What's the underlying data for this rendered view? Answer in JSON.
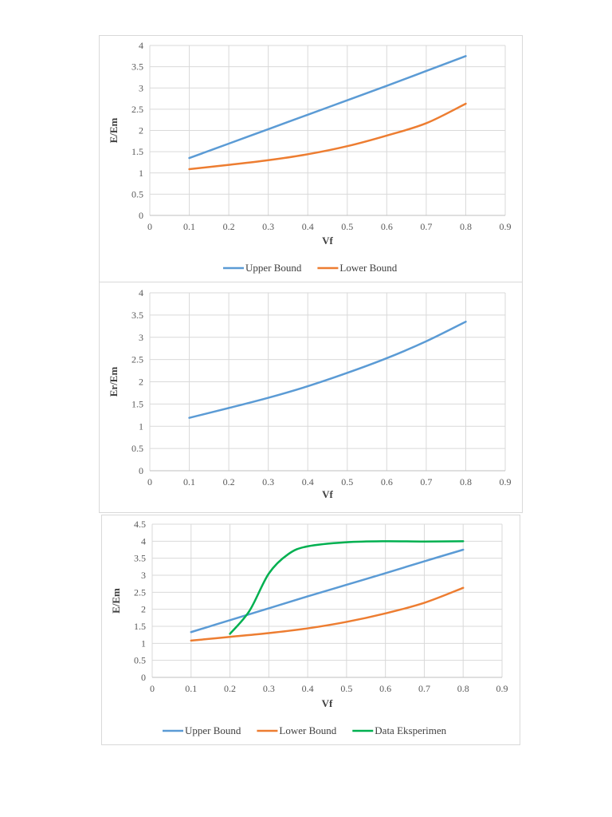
{
  "chart_data": [
    {
      "type": "line",
      "xlabel": "Vf",
      "ylabel": "E/Em",
      "xlim": [
        0,
        0.9
      ],
      "ylim": [
        0,
        4
      ],
      "xticks": [
        "0",
        "0.1",
        "0.2",
        "0.3",
        "0.4",
        "0.5",
        "0.6",
        "0.7",
        "0.8",
        "0.9"
      ],
      "yticks": [
        "0",
        "0.5",
        "1",
        "1.5",
        "2",
        "2.5",
        "3",
        "3.5",
        "4"
      ],
      "grid": true,
      "legend": "bottom",
      "series": [
        {
          "name": "Upper Bound",
          "color": "#5b9bd5",
          "x": [
            0.1,
            0.2,
            0.3,
            0.4,
            0.5,
            0.6,
            0.7,
            0.8
          ],
          "values": [
            1.35,
            1.69,
            2.03,
            2.37,
            2.71,
            3.05,
            3.4,
            3.75
          ]
        },
        {
          "name": "Lower Bound",
          "color": "#ed7d31",
          "x": [
            0.1,
            0.2,
            0.3,
            0.4,
            0.5,
            0.6,
            0.7,
            0.8
          ],
          "values": [
            1.09,
            1.19,
            1.3,
            1.44,
            1.63,
            1.88,
            2.17,
            2.63
          ]
        }
      ]
    },
    {
      "type": "line",
      "xlabel": "Vf",
      "ylabel": "Er/Em",
      "xlim": [
        0,
        0.9
      ],
      "ylim": [
        0,
        4
      ],
      "xticks": [
        "0",
        "0.1",
        "0.2",
        "0.3",
        "0.4",
        "0.5",
        "0.6",
        "0.7",
        "0.8",
        "0.9"
      ],
      "yticks": [
        "0",
        "0.5",
        "1",
        "1.5",
        "2",
        "2.5",
        "3",
        "3.5",
        "4"
      ],
      "grid": true,
      "legend": "none",
      "series": [
        {
          "color": "#5b9bd5",
          "x": [
            0.1,
            0.2,
            0.3,
            0.4,
            0.5,
            0.6,
            0.7,
            0.8
          ],
          "values": [
            1.19,
            1.41,
            1.64,
            1.9,
            2.2,
            2.53,
            2.91,
            3.35
          ]
        }
      ]
    },
    {
      "type": "line",
      "xlabel": "Vf",
      "ylabel": "E/Em",
      "xlim": [
        0,
        0.9
      ],
      "ylim": [
        0,
        4.5
      ],
      "xticks": [
        "0",
        "0.1",
        "0.2",
        "0.3",
        "0.4",
        "0.5",
        "0.6",
        "0.7",
        "0.8",
        "0.9"
      ],
      "yticks": [
        "0",
        "0.5",
        "1",
        "1.5",
        "2",
        "2.5",
        "3",
        "3.5",
        "4",
        "4.5"
      ],
      "grid": true,
      "legend": "bottom",
      "series": [
        {
          "name": "Upper Bound",
          "color": "#5b9bd5",
          "x": [
            0.1,
            0.2,
            0.3,
            0.4,
            0.5,
            0.6,
            0.7,
            0.8
          ],
          "values": [
            1.33,
            1.68,
            2.03,
            2.38,
            2.72,
            3.06,
            3.41,
            3.75
          ]
        },
        {
          "name": "Lower Bound",
          "color": "#ed7d31",
          "x": [
            0.1,
            0.2,
            0.3,
            0.4,
            0.5,
            0.6,
            0.7,
            0.8
          ],
          "values": [
            1.08,
            1.19,
            1.3,
            1.44,
            1.63,
            1.88,
            2.19,
            2.63
          ]
        },
        {
          "name": "Data Eksperimen",
          "color": "#00b050",
          "x": [
            0.2,
            0.25,
            0.3,
            0.35,
            0.4,
            0.5,
            0.6,
            0.7,
            0.8
          ],
          "values": [
            1.28,
            1.95,
            3.05,
            3.62,
            3.85,
            3.97,
            4.0,
            3.99,
            4.0
          ]
        }
      ]
    }
  ]
}
